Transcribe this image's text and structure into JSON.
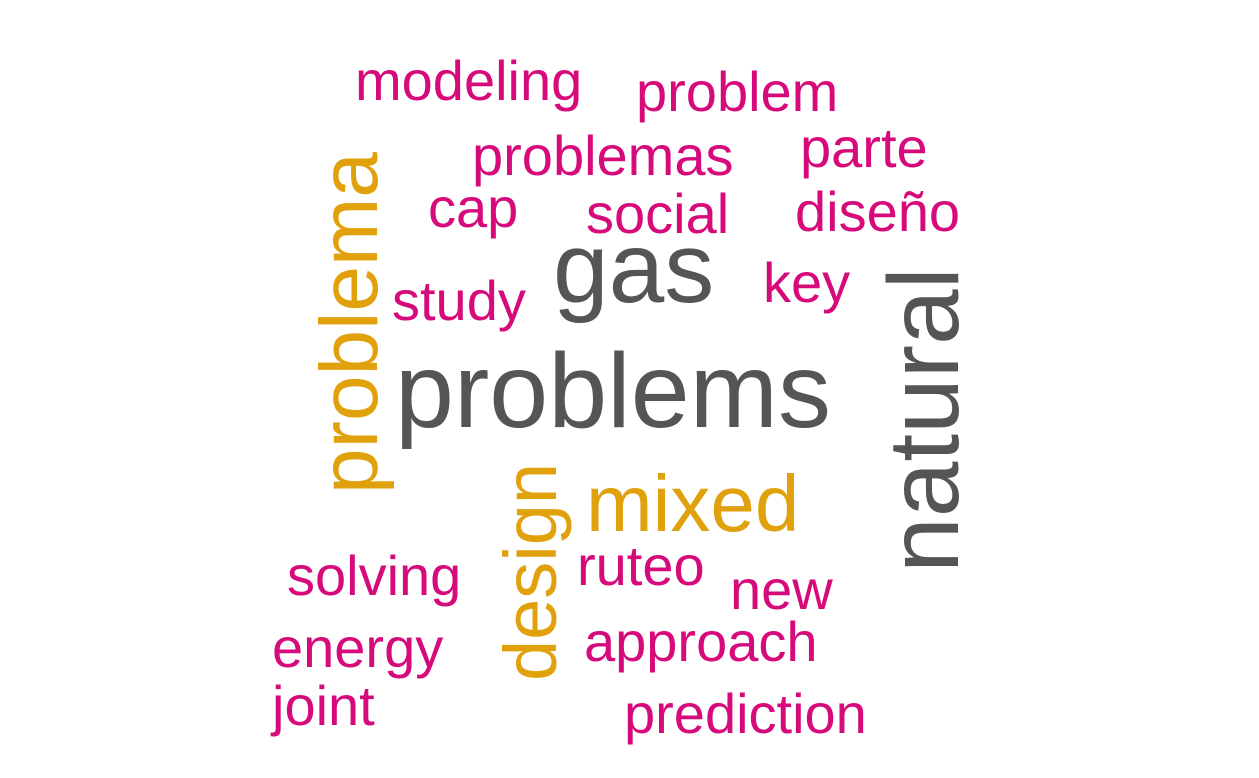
{
  "colors": {
    "dark": "#555555",
    "accent": "#e0a10d",
    "pink": "#d60a7a"
  },
  "words": [
    {
      "text": "modeling",
      "tier": "pink"
    },
    {
      "text": "problem",
      "tier": "pink"
    },
    {
      "text": "problemas",
      "tier": "pink"
    },
    {
      "text": "parte",
      "tier": "pink"
    },
    {
      "text": "cap",
      "tier": "pink"
    },
    {
      "text": "social",
      "tier": "pink"
    },
    {
      "text": "diseño",
      "tier": "pink"
    },
    {
      "text": "gas",
      "tier": "dark"
    },
    {
      "text": "key",
      "tier": "pink"
    },
    {
      "text": "study",
      "tier": "pink"
    },
    {
      "text": "problems",
      "tier": "dark"
    },
    {
      "text": "problema",
      "tier": "accent"
    },
    {
      "text": "natural",
      "tier": "dark"
    },
    {
      "text": "mixed",
      "tier": "accent"
    },
    {
      "text": "design",
      "tier": "accent"
    },
    {
      "text": "solving",
      "tier": "pink"
    },
    {
      "text": "ruteo",
      "tier": "pink"
    },
    {
      "text": "new",
      "tier": "pink"
    },
    {
      "text": "energy",
      "tier": "pink"
    },
    {
      "text": "approach",
      "tier": "pink"
    },
    {
      "text": "joint",
      "tier": "pink"
    },
    {
      "text": "prediction",
      "tier": "pink"
    }
  ]
}
